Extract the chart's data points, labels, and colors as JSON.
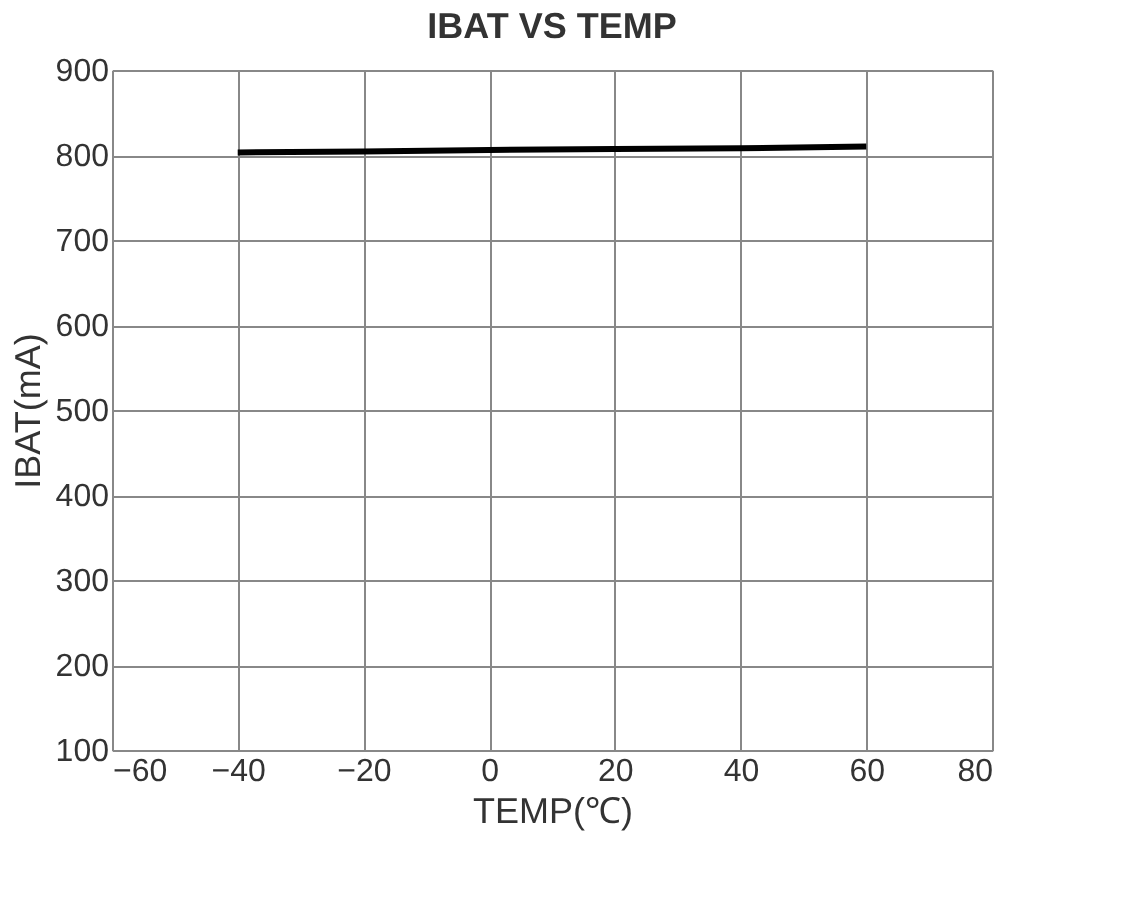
{
  "chart_data": {
    "type": "line",
    "title": "IBAT VS TEMP",
    "xlabel": "TEMP(℃)",
    "ylabel": "IBAT(mA)",
    "x": [
      -40,
      -20,
      0,
      20,
      40,
      60
    ],
    "series": [
      {
        "color": "#000000",
        "values": [
          803,
          804,
          806,
          807,
          808,
          810
        ]
      }
    ],
    "xlim": [
      -60,
      80
    ],
    "xticks": [
      -60,
      -40,
      -20,
      0,
      20,
      40,
      60,
      80
    ],
    "ylim": [
      100,
      900
    ],
    "yticks": [
      100,
      200,
      300,
      400,
      500,
      600,
      700,
      800,
      900
    ],
    "grid": true,
    "marker": "none",
    "line_style": "solid"
  }
}
